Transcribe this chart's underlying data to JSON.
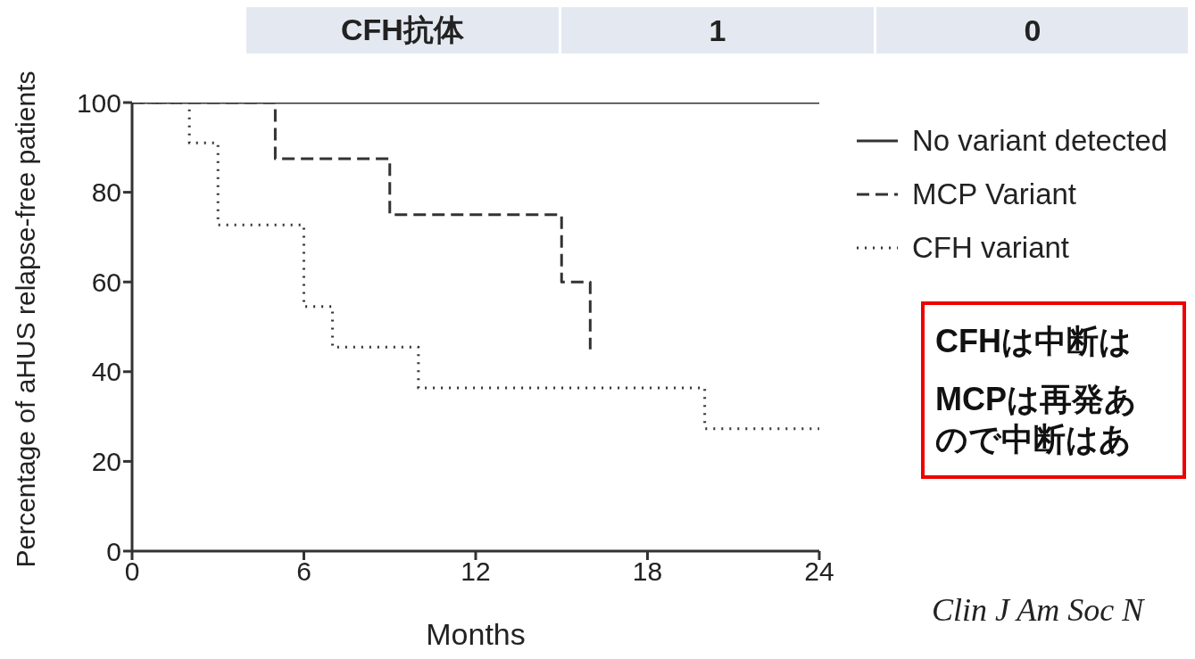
{
  "chart_data": {
    "type": "step",
    "xlabel": "Months",
    "ylabel": "Percentage of aHUS relapse-free patients",
    "xlim": [
      0,
      24
    ],
    "xticks": [
      0,
      6,
      12,
      18,
      24
    ],
    "ylim": [
      0,
      100
    ],
    "yticks": [
      0,
      20,
      40,
      60,
      80,
      100
    ],
    "grid": false,
    "legend": "right",
    "series": [
      {
        "name": "No variant detected",
        "color": "#333333",
        "line_style": "solid",
        "x": [
          0,
          24
        ],
        "values": [
          100,
          100
        ]
      },
      {
        "name": "MCP Variant",
        "color": "#333333",
        "line_style": "dashed",
        "x": [
          0,
          5,
          9,
          15,
          16,
          16
        ],
        "values": [
          100,
          87.5,
          75,
          60,
          45,
          45
        ]
      },
      {
        "name": "CFH variant",
        "color": "#333333",
        "line_style": "dotted",
        "x": [
          0,
          2,
          3,
          6,
          7,
          10,
          20,
          24
        ],
        "values": [
          100,
          91,
          72.7,
          54.5,
          45.5,
          36.4,
          27.3,
          27.3
        ]
      }
    ],
    "annotations": [
      "CFH抗体",
      "1",
      "0",
      "CFHは中断は",
      "MCPは再発あ",
      "ので中断はあ",
      "Clin J Am Soc N"
    ]
  }
}
